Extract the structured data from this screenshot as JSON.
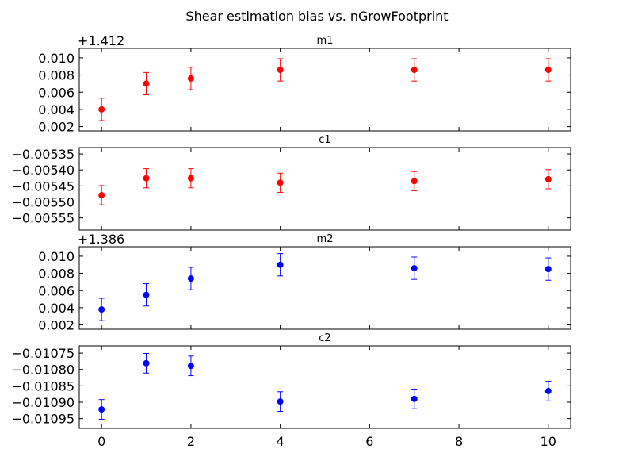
{
  "figure": {
    "title": "Shear estimation bias vs. nGrowFootprint"
  },
  "chart_data": [
    {
      "type": "scatter",
      "title": "m1",
      "offset_label": "+1.412",
      "color": "#ff0000",
      "x": [
        0,
        1,
        2,
        4,
        7,
        10
      ],
      "y": [
        0.004,
        0.007,
        0.0076,
        0.0086,
        0.0086,
        0.0086
      ],
      "err": [
        0.0013,
        0.0013,
        0.0013,
        0.0013,
        0.0013,
        0.0013
      ],
      "xlim": [
        -0.5,
        10.5
      ],
      "ylim": [
        0.0015,
        0.0111
      ],
      "yticks": [
        0.002,
        0.004,
        0.006,
        0.008,
        0.01
      ],
      "ytick_labels": [
        "0.002",
        "0.004",
        "0.006",
        "0.008",
        "0.010"
      ],
      "xtick_labels_visible": false
    },
    {
      "type": "scatter",
      "title": "c1",
      "offset_label": "",
      "color": "#ff0000",
      "x": [
        0,
        1,
        2,
        4,
        7,
        10
      ],
      "y": [
        -0.005479,
        -0.005426,
        -0.005426,
        -0.00544,
        -0.005435,
        -0.005429
      ],
      "err": [
        3e-05,
        3e-05,
        3e-05,
        3e-05,
        3e-05,
        3e-05
      ],
      "xlim": [
        -0.5,
        10.5
      ],
      "ylim": [
        -0.005588,
        -0.00533
      ],
      "yticks": [
        -0.00535,
        -0.0054,
        -0.00545,
        -0.0055,
        -0.00555
      ],
      "ytick_labels": [
        "−0.00535",
        "−0.00540",
        "−0.00545",
        "−0.00550",
        "−0.00555"
      ],
      "xtick_labels_visible": false
    },
    {
      "type": "scatter",
      "title": "m2",
      "offset_label": "+1.386",
      "color": "#0000ff",
      "x": [
        0,
        1,
        2,
        4,
        7,
        10
      ],
      "y": [
        0.0038,
        0.0055,
        0.0074,
        0.009,
        0.0086,
        0.0085
      ],
      "err": [
        0.0013,
        0.0013,
        0.0013,
        0.0013,
        0.0013,
        0.0013
      ],
      "xlim": [
        -0.5,
        10.5
      ],
      "ylim": [
        0.0015,
        0.0111
      ],
      "yticks": [
        0.002,
        0.004,
        0.006,
        0.008,
        0.01
      ],
      "ytick_labels": [
        "0.002",
        "0.004",
        "0.006",
        "0.008",
        "0.010"
      ],
      "xtick_labels_visible": false
    },
    {
      "type": "scatter",
      "title": "c2",
      "offset_label": "",
      "color": "#0000ff",
      "x": [
        0,
        1,
        2,
        4,
        7,
        10
      ],
      "y": [
        -0.010922,
        -0.010781,
        -0.010789,
        -0.010898,
        -0.01089,
        -0.010866
      ],
      "err": [
        3e-05,
        3e-05,
        3e-05,
        3e-05,
        3e-05,
        3e-05
      ],
      "xlim": [
        -0.5,
        10.5
      ],
      "ylim": [
        -0.01098,
        -0.010728
      ],
      "yticks": [
        -0.01075,
        -0.0108,
        -0.01085,
        -0.0109,
        -0.01095
      ],
      "ytick_labels": [
        "−0.01075",
        "−0.01080",
        "−0.01085",
        "−0.01090",
        "−0.01095"
      ],
      "xtick_labels_visible": true
    }
  ],
  "x_axis": {
    "ticks": [
      0,
      2,
      4,
      6,
      8,
      10
    ],
    "tick_labels": [
      "0",
      "2",
      "4",
      "6",
      "8",
      "10"
    ]
  }
}
